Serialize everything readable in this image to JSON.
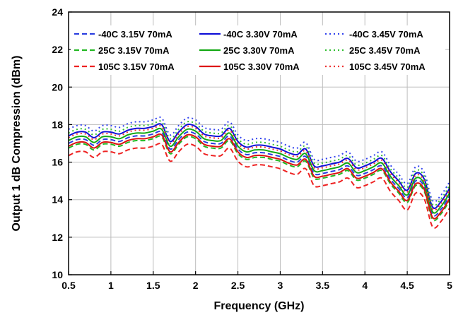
{
  "chart_data": {
    "type": "line",
    "xlabel": "Frequency (GHz)",
    "ylabel": "Output 1 dB Compression (dBm)",
    "xlim": [
      0.5,
      5
    ],
    "ylim": [
      10,
      24
    ],
    "xticks": [
      0.5,
      1,
      1.5,
      2,
      2.5,
      3,
      3.5,
      4,
      4.5,
      5
    ],
    "xtick_labels": [
      "0.5",
      "1",
      "1.5",
      "2",
      "2.5",
      "3",
      "3.5",
      "4",
      "4.5",
      "5"
    ],
    "yticks": [
      10,
      12,
      14,
      16,
      18,
      20,
      22,
      24
    ],
    "ytick_labels": [
      "10",
      "12",
      "14",
      "16",
      "18",
      "20",
      "22",
      "24"
    ],
    "grid": true,
    "legend_position": "top",
    "x": [
      0.5,
      0.6,
      0.7,
      0.8,
      0.9,
      1.0,
      1.1,
      1.2,
      1.3,
      1.4,
      1.5,
      1.6,
      1.7,
      1.8,
      1.9,
      2.0,
      2.1,
      2.2,
      2.3,
      2.4,
      2.5,
      2.6,
      2.7,
      2.8,
      2.9,
      3.0,
      3.1,
      3.2,
      3.3,
      3.4,
      3.5,
      3.6,
      3.7,
      3.8,
      3.9,
      4.0,
      4.1,
      4.2,
      4.3,
      4.4,
      4.5,
      4.6,
      4.7,
      4.8,
      4.9,
      5.0
    ],
    "base_curve": [
      16.8,
      17.0,
      17.0,
      16.7,
      17.0,
      17.0,
      16.9,
      17.1,
      17.2,
      17.2,
      17.3,
      17.4,
      16.5,
      17.0,
      17.4,
      17.3,
      16.9,
      16.8,
      16.8,
      17.2,
      16.5,
      16.2,
      16.3,
      16.3,
      16.2,
      16.1,
      15.9,
      15.8,
      16.1,
      15.2,
      15.2,
      15.3,
      15.4,
      15.6,
      15.1,
      15.2,
      15.4,
      15.6,
      14.9,
      14.4,
      13.9,
      14.8,
      14.5,
      13.0,
      13.3,
      14.0
    ],
    "series": [
      {
        "name": "-40C 3.15V 70mA",
        "color": "#2b3fe0",
        "dash": "dashed",
        "offset": 0.2
      },
      {
        "name": "-40C 3.30V 70mA",
        "color": "#1010d8",
        "dash": "solid",
        "offset": 0.6
      },
      {
        "name": "-40C 3.45V 70mA",
        "color": "#3344ee",
        "dash": "dotted",
        "offset": 0.95
      },
      {
        "name": "25C 3.15V 70mA",
        "color": "#22b822",
        "dash": "dashed",
        "offset": -0.05
      },
      {
        "name": "25C 3.30V 70mA",
        "color": "#12a812",
        "dash": "solid",
        "offset": 0.35
      },
      {
        "name": "25C 3.45V 70mA",
        "color": "#33c033",
        "dash": "dotted",
        "offset": 0.75
      },
      {
        "name": "105C 3.15V 70mA",
        "color": "#ee2222",
        "dash": "dashed",
        "offset": -0.45
      },
      {
        "name": "105C 3.30V 70mA",
        "color": "#dd1010",
        "dash": "solid",
        "offset": 0.05
      },
      {
        "name": "105C 3.45V 70mA",
        "color": "#ee3333",
        "dash": "dotted",
        "offset": 0.5
      }
    ]
  }
}
